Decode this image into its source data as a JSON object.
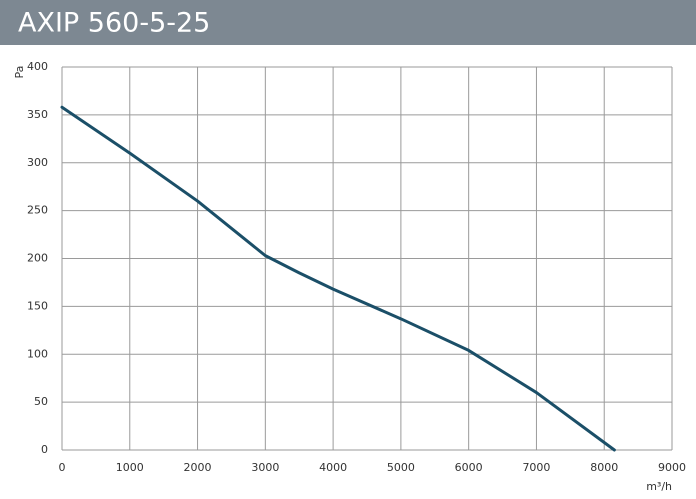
{
  "chart_data": {
    "type": "line",
    "title": "AXIP 560-5-25",
    "y_label": "Pa",
    "x_label": "m³/h",
    "x": [
      0,
      1000,
      2000,
      3000,
      3500,
      4000,
      5000,
      6000,
      7000,
      8150
    ],
    "series": [
      {
        "name": "AXIP 560-5-25",
        "color": "#1b4f68",
        "values": [
          358,
          310,
          260,
          203,
          185,
          168,
          137,
          104,
          60,
          0
        ]
      }
    ],
    "xlim": [
      0,
      9000
    ],
    "xticks": [
      0,
      1000,
      2000,
      3000,
      4000,
      5000,
      6000,
      7000,
      8000,
      9000
    ],
    "ylim": [
      0,
      400
    ],
    "yticks": [
      0,
      50,
      100,
      150,
      200,
      250,
      300,
      350,
      400
    ],
    "grid": true
  }
}
